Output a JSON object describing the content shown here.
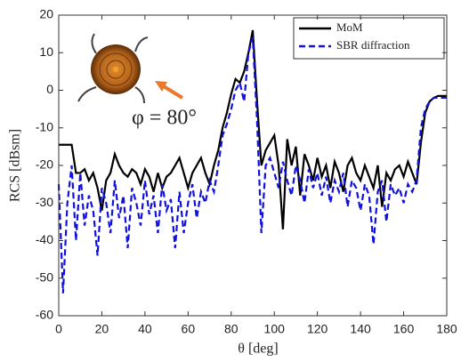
{
  "chart_data": {
    "type": "line",
    "x_label": "θ [deg]",
    "y_label": "RCS [dBsm]",
    "annotation": "φ = 80°",
    "x": [
      0,
      2,
      4,
      6,
      8,
      10,
      12,
      14,
      16,
      18,
      20,
      22,
      24,
      26,
      28,
      30,
      32,
      34,
      36,
      38,
      40,
      42,
      44,
      46,
      48,
      50,
      52,
      54,
      56,
      58,
      60,
      62,
      64,
      66,
      68,
      70,
      72,
      74,
      76,
      78,
      80,
      82,
      84,
      86,
      88,
      90,
      92,
      94,
      96,
      98,
      100,
      102,
      104,
      106,
      108,
      110,
      112,
      114,
      116,
      118,
      120,
      122,
      124,
      126,
      128,
      130,
      132,
      134,
      136,
      138,
      140,
      142,
      144,
      146,
      148,
      150,
      152,
      154,
      156,
      158,
      160,
      162,
      164,
      166,
      168,
      170,
      172,
      174,
      176,
      178,
      180
    ],
    "series": [
      {
        "name": "MoM",
        "color": "#000000",
        "dashed": false,
        "values": [
          -14.5,
          -14.5,
          -14.5,
          -14.5,
          -22,
          -22,
          -21,
          -24,
          -22,
          -26,
          -32,
          -24,
          -22,
          -17,
          -20,
          -22,
          -23,
          -21,
          -22,
          -25,
          -21,
          -23,
          -27,
          -22,
          -26,
          -23,
          -22,
          -20,
          -18,
          -22,
          -26,
          -22,
          -20,
          -18,
          -22,
          -25,
          -20,
          -16,
          -10,
          -6,
          -1,
          3,
          2,
          5,
          10,
          16,
          -3,
          -20,
          -16,
          -14,
          -12,
          -20,
          -37,
          -13,
          -20,
          -15,
          -28,
          -17,
          -20,
          -24,
          -18,
          -23,
          -20,
          -26,
          -19,
          -22,
          -27,
          -20,
          -18,
          -22,
          -24,
          -20,
          -23,
          -26,
          -20,
          -31,
          -22,
          -24,
          -21,
          -20,
          -23,
          -19,
          -22,
          -25,
          -14,
          -6,
          -3,
          -2,
          -1.5,
          -1.5,
          -1.5
        ]
      },
      {
        "name": "SBR diffraction",
        "color": "#1010e0",
        "dashed": true,
        "values": [
          -25,
          -54,
          -30,
          -20,
          -40,
          -22,
          -36,
          -28,
          -32,
          -44,
          -26,
          -30,
          -38,
          -24,
          -34,
          -28,
          -42,
          -26,
          -30,
          -36,
          -24,
          -33,
          -28,
          -38,
          -25,
          -32,
          -29,
          -42,
          -27,
          -38,
          -30,
          -25,
          -34,
          -27,
          -30,
          -24,
          -27,
          -20,
          -12,
          -9,
          -5,
          0,
          2,
          -3,
          10,
          14,
          -8,
          -38,
          -20,
          -18,
          -22,
          -26,
          -19,
          -24,
          -28,
          -20,
          -24,
          -30,
          -21,
          -26,
          -22,
          -28,
          -23,
          -30,
          -24,
          -27,
          -22,
          -31,
          -24,
          -26,
          -32,
          -25,
          -28,
          -41,
          -27,
          -24,
          -35,
          -25,
          -28,
          -26,
          -30,
          -25,
          -27,
          -24,
          -10,
          -5,
          -3,
          -2,
          -2,
          -2,
          -2
        ]
      }
    ],
    "xlim": [
      0,
      180
    ],
    "xticks": [
      0,
      20,
      40,
      60,
      80,
      100,
      120,
      140,
      160,
      180
    ],
    "ylim": [
      -60,
      20
    ],
    "yticks": [
      -60,
      -50,
      -40,
      -30,
      -20,
      -10,
      0,
      10,
      20
    ],
    "grid": false,
    "legend": "upper right"
  }
}
